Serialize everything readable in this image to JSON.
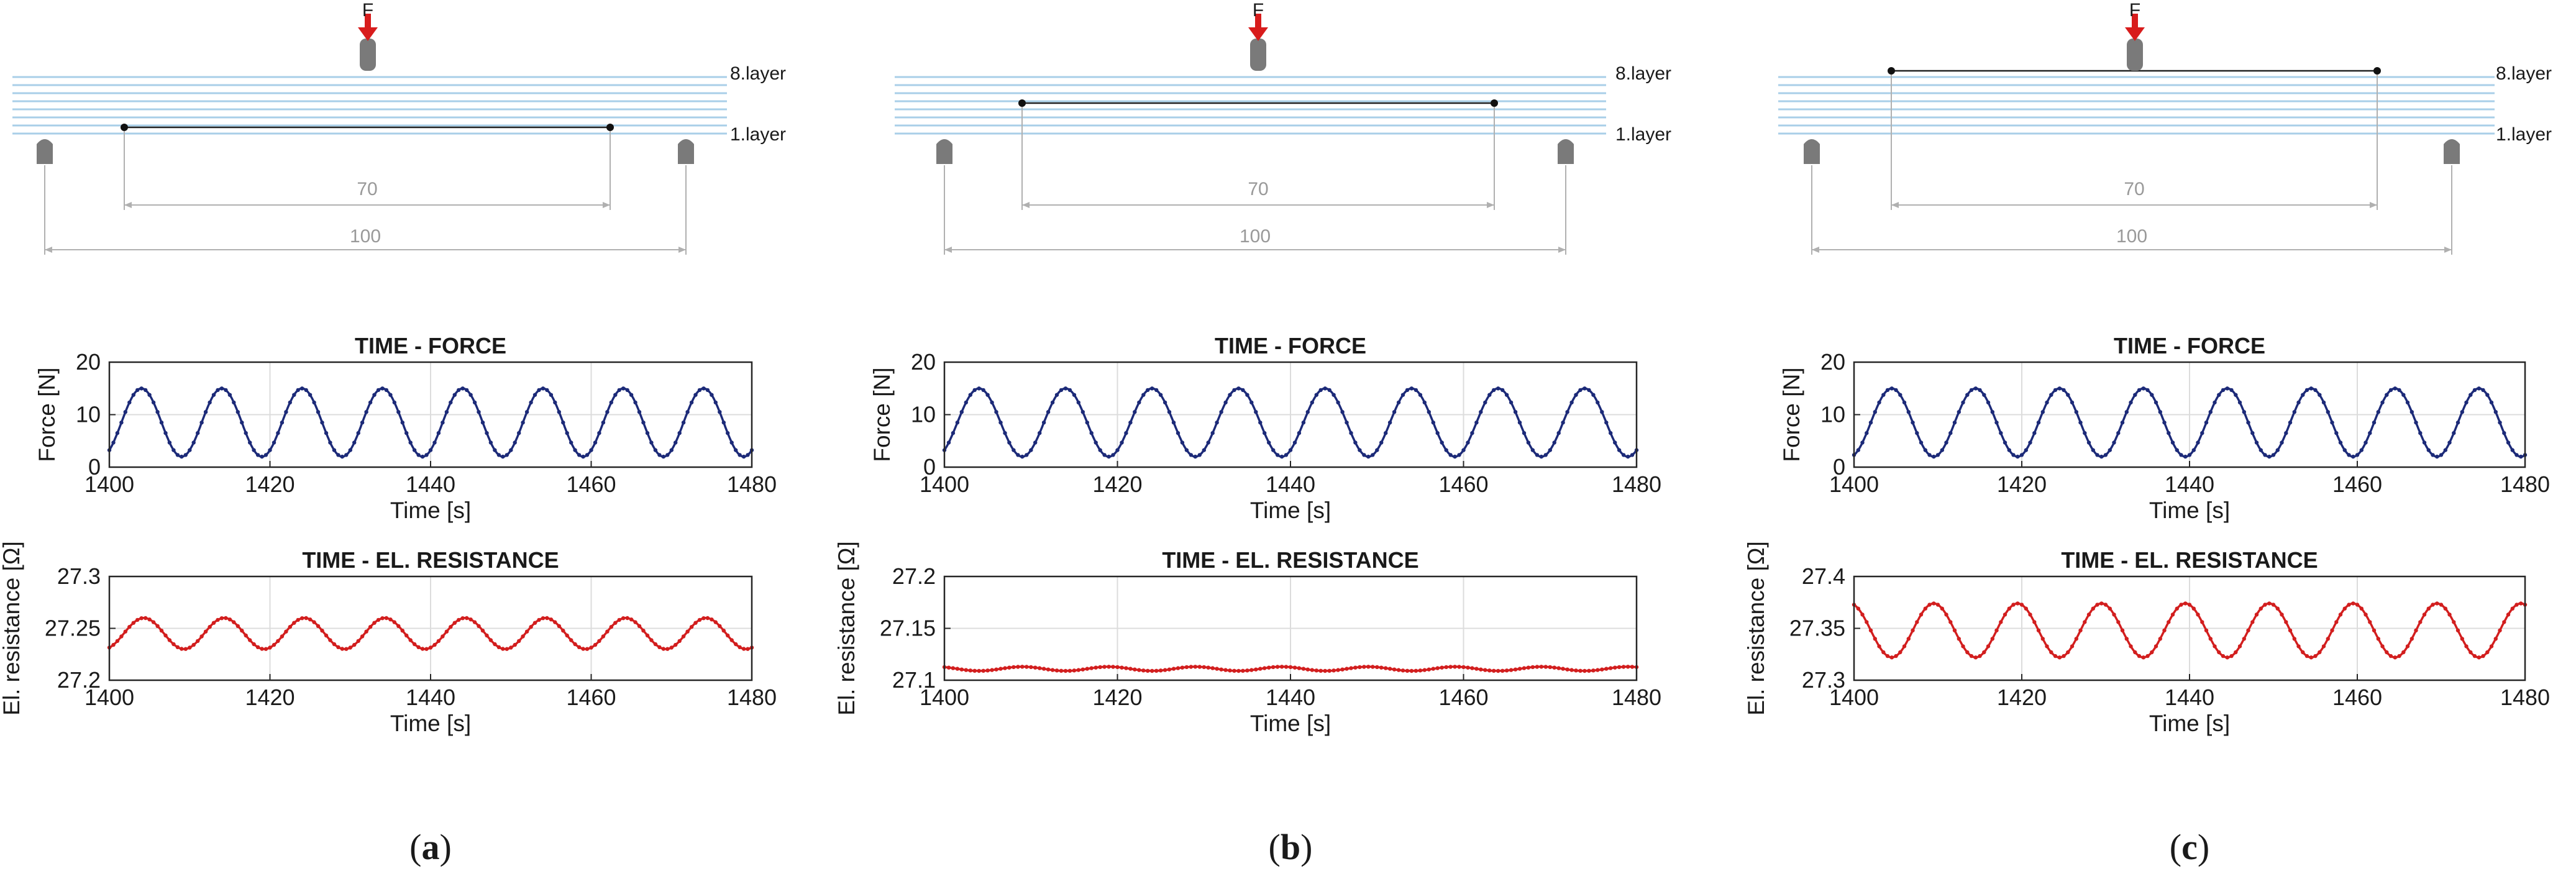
{
  "colors": {
    "layer_line": "#a9cfe8",
    "force": "#1c2a78",
    "resistance": "#d21e1e",
    "arrow": "#d81c1c",
    "support": "#7a7a7a",
    "dimension": "#b0b0b0",
    "grid": "#dcdcdc",
    "text": "#1a1a1a"
  },
  "panels": [
    {
      "caption_label": "a",
      "diagram": {
        "force_label": "F",
        "top_layer_label": "8.layer",
        "bottom_layer_label": "1.layer",
        "sensor_layer": 1,
        "inner_dimension": "70",
        "outer_dimension": "100"
      }
    },
    {
      "caption_label": "b",
      "diagram": {
        "force_label": "F",
        "top_layer_label": "8.layer",
        "bottom_layer_label": "1.layer",
        "sensor_layer": 4,
        "inner_dimension": "70",
        "outer_dimension": "100"
      }
    },
    {
      "caption_label": "c",
      "diagram": {
        "force_label": "F",
        "top_layer_label": "8.layer",
        "bottom_layer_label": "1.layer",
        "sensor_layer": 8,
        "inner_dimension": "70",
        "outer_dimension": "100"
      }
    }
  ],
  "chart_data": [
    {
      "panel": "a",
      "type": "line",
      "title": "TIME - FORCE",
      "xlabel": "Time [s]",
      "ylabel": "Force [N]",
      "xlim": [
        1400,
        1480
      ],
      "ylim": [
        0,
        20
      ],
      "xticks": [
        "1400",
        "1420",
        "1440",
        "1460",
        "1480"
      ],
      "yticks": [
        "0",
        "10",
        "20"
      ],
      "grid": true,
      "series": [
        {
          "name": "Force",
          "wave": {
            "mean": 8.5,
            "amplitude": 6.5,
            "period": 10,
            "peak_at": 1404
          }
        }
      ]
    },
    {
      "panel": "a",
      "type": "line",
      "title": "TIME - EL. RESISTANCE",
      "xlabel": "Time [s]",
      "ylabel": "El. resistance [Ω]",
      "xlim": [
        1400,
        1480
      ],
      "ylim": [
        27.2,
        27.3
      ],
      "xticks": [
        "1400",
        "1420",
        "1440",
        "1460",
        "1480"
      ],
      "yticks": [
        "27.2",
        "27.25",
        "27.3"
      ],
      "grid": true,
      "series": [
        {
          "name": "El. resistance",
          "wave": {
            "mean": 27.245,
            "amplitude": 0.015,
            "period": 10,
            "peak_at": 1404.3
          }
        }
      ]
    },
    {
      "panel": "b",
      "type": "line",
      "title": "TIME - FORCE",
      "xlabel": "Time [s]",
      "ylabel": "Force [N]",
      "xlim": [
        1400,
        1480
      ],
      "ylim": [
        0,
        20
      ],
      "xticks": [
        "1400",
        "1420",
        "1440",
        "1460",
        "1480"
      ],
      "yticks": [
        "0",
        "10",
        "20"
      ],
      "grid": true,
      "series": [
        {
          "name": "Force",
          "wave": {
            "mean": 8.5,
            "amplitude": 6.5,
            "period": 10,
            "peak_at": 1404
          }
        }
      ]
    },
    {
      "panel": "b",
      "type": "line",
      "title": "TIME - EL. RESISTANCE",
      "xlabel": "Time [s]",
      "ylabel": "El. resistance [Ω]",
      "xlim": [
        1400,
        1480
      ],
      "ylim": [
        27.1,
        27.2
      ],
      "xticks": [
        "1400",
        "1420",
        "1440",
        "1460",
        "1480"
      ],
      "yticks": [
        "27.1",
        "27.15",
        "27.2"
      ],
      "grid": true,
      "series": [
        {
          "name": "El. resistance",
          "wave": {
            "mean": 27.111,
            "amplitude": 0.002,
            "period": 10,
            "peak_at": 1409
          }
        }
      ]
    },
    {
      "panel": "c",
      "type": "line",
      "title": "TIME - FORCE",
      "xlabel": "Time [s]",
      "ylabel": "Force [N]",
      "xlim": [
        1400,
        1480
      ],
      "ylim": [
        0,
        20
      ],
      "xticks": [
        "1400",
        "1420",
        "1440",
        "1460",
        "1480"
      ],
      "yticks": [
        "0",
        "10",
        "20"
      ],
      "grid": true,
      "series": [
        {
          "name": "Force",
          "wave": {
            "mean": 8.5,
            "amplitude": 6.5,
            "period": 10,
            "peak_at": 1404.5
          }
        }
      ]
    },
    {
      "panel": "c",
      "type": "line",
      "title": "TIME - EL. RESISTANCE",
      "xlabel": "Time [s]",
      "ylabel": "El. resistance [Ω]",
      "xlim": [
        1400,
        1480
      ],
      "ylim": [
        27.3,
        27.4
      ],
      "xticks": [
        "1400",
        "1420",
        "1440",
        "1460",
        "1480"
      ],
      "yticks": [
        "27.3",
        "27.35",
        "27.4"
      ],
      "grid": true,
      "series": [
        {
          "name": "El. resistance",
          "wave": {
            "mean": 27.348,
            "amplitude": 0.026,
            "period": 10,
            "peak_at": 1409.5
          }
        }
      ]
    }
  ]
}
